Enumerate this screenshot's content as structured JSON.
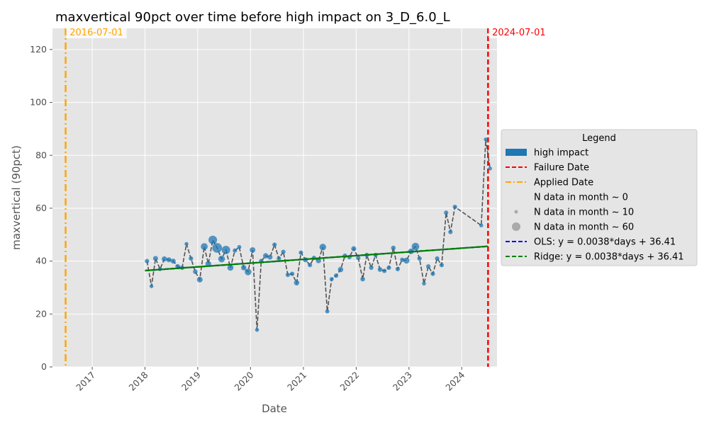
{
  "chart_data": {
    "type": "line",
    "title": "maxvertical 90pct over time before high impact on 3_D_6.0_L",
    "xlabel": "Date",
    "ylabel": "maxvertical (90pct)",
    "ylim": [
      0,
      128
    ],
    "y_ticks": [
      0,
      20,
      40,
      60,
      80,
      100,
      120
    ],
    "x_ticks": [
      "2017",
      "2018",
      "2019",
      "2020",
      "2021",
      "2022",
      "2023",
      "2024"
    ],
    "grid": true,
    "legend_position": "right",
    "background_color": "#e5e5e5",
    "series": [
      {
        "name": "high impact",
        "kind": "monthly points",
        "color": "#1f77b4",
        "x": [
          "2018-01",
          "2018-02",
          "2018-03",
          "2018-04",
          "2018-05",
          "2018-06",
          "2018-07",
          "2018-08",
          "2018-09",
          "2018-10",
          "2018-11",
          "2018-12",
          "2019-01",
          "2019-02",
          "2019-03",
          "2019-04",
          "2019-05",
          "2019-06",
          "2019-07",
          "2019-08",
          "2019-09",
          "2019-10",
          "2019-11",
          "2019-12",
          "2020-01",
          "2020-02",
          "2020-03",
          "2020-04",
          "2020-05",
          "2020-06",
          "2020-07",
          "2020-08",
          "2020-09",
          "2020-10",
          "2020-11",
          "2020-12",
          "2021-01",
          "2021-02",
          "2021-03",
          "2021-04",
          "2021-05",
          "2021-06",
          "2021-07",
          "2021-08",
          "2021-09",
          "2021-10",
          "2021-11",
          "2021-12",
          "2022-01",
          "2022-02",
          "2022-03",
          "2022-04",
          "2022-05",
          "2022-06",
          "2022-07",
          "2022-08",
          "2022-09",
          "2022-10",
          "2022-11",
          "2022-12",
          "2023-01",
          "2023-02",
          "2023-03",
          "2023-04",
          "2023-05",
          "2023-06",
          "2023-07",
          "2023-08",
          "2023-09",
          "2023-10",
          "2023-11",
          "2024-05",
          "2024-06",
          "2024-07"
        ],
        "y": [
          40,
          30.5,
          41,
          37,
          40.8,
          40.5,
          40,
          38,
          37.5,
          46.5,
          41,
          36,
          33,
          45.5,
          39,
          48,
          45,
          40.8,
          44.2,
          37.5,
          44,
          45.3,
          37.5,
          35.9,
          44.2,
          14,
          40,
          42,
          41.5,
          46.2,
          41,
          43.5,
          34.8,
          35.2,
          31.8,
          43.2,
          40.5,
          38.5,
          41.2,
          40.2,
          45.3,
          21,
          33.2,
          34.5,
          36.8,
          42,
          41.5,
          44.7,
          41.2,
          33.2,
          42.3,
          37.5,
          42.3,
          36.8,
          36.3,
          37.5,
          45,
          37,
          40.5,
          40.2,
          43.7,
          45.5,
          41,
          31.5,
          38,
          35.2,
          41,
          38.5,
          58.3,
          51,
          60.5,
          53.5,
          86,
          75
        ],
        "n": [
          5,
          3,
          8,
          4,
          10,
          8,
          8,
          6,
          5,
          3,
          5,
          6,
          12,
          22,
          12,
          40,
          55,
          20,
          38,
          15,
          5,
          4,
          10,
          20,
          12,
          3,
          6,
          10,
          8,
          5,
          5,
          5,
          5,
          5,
          10,
          5,
          8,
          5,
          5,
          10,
          20,
          4,
          4,
          5,
          10,
          6,
          5,
          8,
          5,
          6,
          5,
          5,
          5,
          6,
          5,
          5,
          6,
          5,
          5,
          15,
          12,
          28,
          5,
          3,
          5,
          5,
          5,
          5,
          5,
          5,
          5,
          3,
          3,
          3
        ]
      },
      {
        "name": "OLS: y = 0.0038*days + 36.41",
        "color": "#0000ff",
        "x": [
          "2018-01",
          "2024-07"
        ],
        "y": [
          36.41,
          45.6
        ]
      },
      {
        "name": "Ridge: y = 0.0038*days + 36.41",
        "color": "#008000",
        "x": [
          "2018-01",
          "2024-07"
        ],
        "y": [
          36.41,
          45.6
        ]
      }
    ],
    "vlines": [
      {
        "name": "Failure Date",
        "date": "2024-07-01",
        "label": "2024-07-01",
        "color": "#ff0000",
        "style": "dashed"
      },
      {
        "name": "Applied Date",
        "date": "2016-07-01",
        "label": "2016-07-01",
        "color": "#ffa500",
        "style": "dashdot"
      }
    ],
    "legend": {
      "title": "Legend",
      "entries": [
        {
          "label": "high impact",
          "marker": "patch",
          "color": "#1f77b4"
        },
        {
          "label": "Failure Date",
          "marker": "dashed",
          "color": "#ff0000"
        },
        {
          "label": "Applied Date",
          "marker": "dashdot",
          "color": "#ffa500"
        },
        {
          "label": "N data in month ~ 0",
          "marker": "dot0",
          "color": "#aaaaaa"
        },
        {
          "label": "N data in month ~ 10",
          "marker": "dot10",
          "color": "#aaaaaa"
        },
        {
          "label": "N data in month ~ 60",
          "marker": "dot60",
          "color": "#aaaaaa"
        },
        {
          "label": "OLS: y = 0.0038*days + 36.41",
          "marker": "dashed",
          "color": "#0000ff"
        },
        {
          "label": "Ridge: y = 0.0038*days + 36.41",
          "marker": "dashed",
          "color": "#008000"
        }
      ]
    }
  }
}
